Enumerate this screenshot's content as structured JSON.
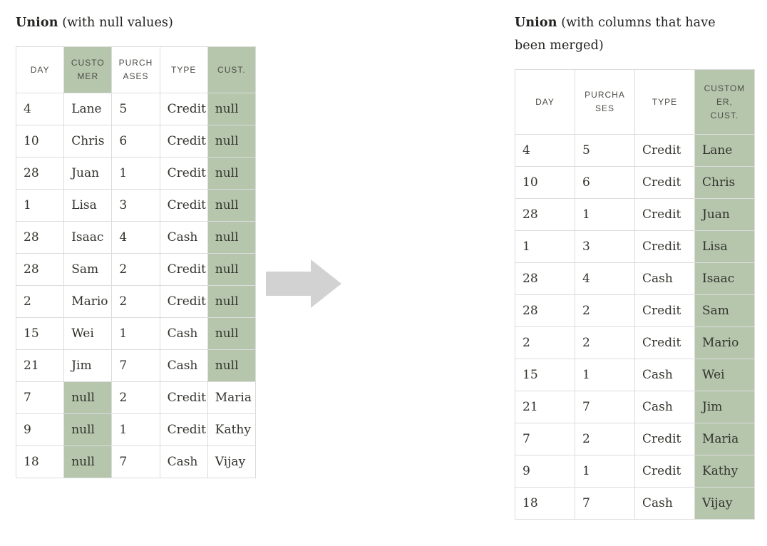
{
  "colors": {
    "green": "#b6c6ad",
    "border": "#dcdcdc",
    "body_text": "#33332d",
    "header_text": "#4d4d48",
    "title_text": "#222220",
    "arrow": "#d2d2d2"
  },
  "left_panel": {
    "title_bold": "Union",
    "title_rest": " (with null values)",
    "table": {
      "headers": [
        {
          "label": "DAY",
          "lines": [
            "DAY"
          ]
        },
        {
          "label": "CUSTOMER",
          "lines": [
            "CUSTO",
            "MER"
          ]
        },
        {
          "label": "PURCHASES",
          "lines": [
            "PURCH",
            "ASES"
          ]
        },
        {
          "label": "TYPE",
          "lines": [
            "TYPE"
          ]
        },
        {
          "label": "CUST.",
          "lines": [
            "CUST."
          ]
        }
      ],
      "green_header_columns": [
        1,
        4
      ],
      "green_when_value": "null",
      "green_body_columns": [],
      "rows": [
        [
          "4",
          "Lane",
          "5",
          "Credit",
          "null"
        ],
        [
          "10",
          "Chris",
          "6",
          "Credit",
          "null"
        ],
        [
          "28",
          "Juan",
          "1",
          "Credit",
          "null"
        ],
        [
          "1",
          "Lisa",
          "3",
          "Credit",
          "null"
        ],
        [
          "28",
          "Isaac",
          "4",
          "Cash",
          "null"
        ],
        [
          "28",
          "Sam",
          "2",
          "Credit",
          "null"
        ],
        [
          "2",
          "Mario",
          "2",
          "Credit",
          "null"
        ],
        [
          "15",
          "Wei",
          "1",
          "Cash",
          "null"
        ],
        [
          "21",
          "Jim",
          "7",
          "Cash",
          "null"
        ],
        [
          "7",
          "null",
          "2",
          "Credit",
          "Maria"
        ],
        [
          "9",
          "null",
          "1",
          "Credit",
          "Kathy"
        ],
        [
          "18",
          "null",
          "7",
          "Cash",
          "Vijay"
        ]
      ]
    }
  },
  "right_panel": {
    "title_bold": "Union",
    "title_rest": " (with columns that have been merged)",
    "table": {
      "headers": [
        {
          "label": "DAY",
          "lines": [
            "DAY"
          ]
        },
        {
          "label": "PURCHASES",
          "lines": [
            "PURCHA",
            "SES"
          ]
        },
        {
          "label": "TYPE",
          "lines": [
            "TYPE"
          ]
        },
        {
          "label": "CUSTOMER, CUST.",
          "lines": [
            "CUSTOM",
            "ER,",
            "CUST."
          ]
        }
      ],
      "green_header_columns": [
        3
      ],
      "green_when_value": null,
      "green_body_columns": [
        3
      ],
      "rows": [
        [
          "4",
          "5",
          "Credit",
          "Lane"
        ],
        [
          "10",
          "6",
          "Credit",
          "Chris"
        ],
        [
          "28",
          "1",
          "Credit",
          "Juan"
        ],
        [
          "1",
          "3",
          "Credit",
          "Lisa"
        ],
        [
          "28",
          "4",
          "Cash",
          "Isaac"
        ],
        [
          "28",
          "2",
          "Credit",
          "Sam"
        ],
        [
          "2",
          "2",
          "Credit",
          "Mario"
        ],
        [
          "15",
          "1",
          "Cash",
          "Wei"
        ],
        [
          "21",
          "7",
          "Cash",
          "Jim"
        ],
        [
          "7",
          "2",
          "Credit",
          "Maria"
        ],
        [
          "9",
          "1",
          "Credit",
          "Kathy"
        ],
        [
          "18",
          "7",
          "Cash",
          "Vijay"
        ]
      ]
    }
  },
  "arrow": {
    "direction": "right"
  }
}
